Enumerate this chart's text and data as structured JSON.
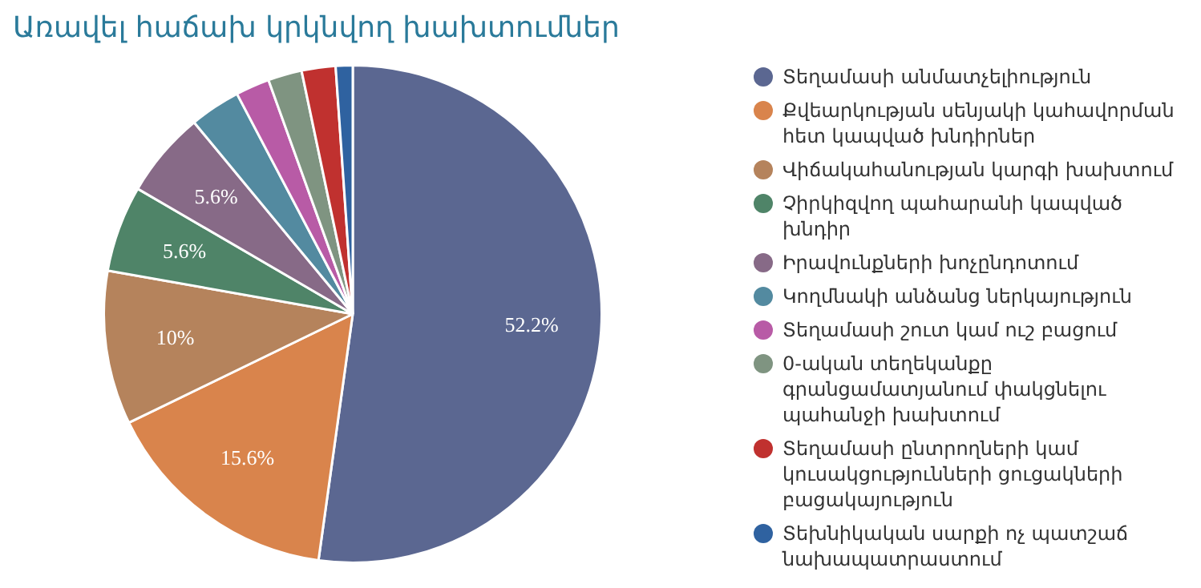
{
  "chart_data": {
    "type": "pie",
    "title": "Առավել հաճախ կրկնվող խախտումներ",
    "categories": [
      "Տեղամասի անմատչելիություն",
      "Քվեարկության սենյակի կահավորման հետ կապված խնդիրներ",
      "Վիճակահանության կարգի խախտում",
      "Չիրկիզվող պահարանի կապված խնդիր",
      "Իրավունքների խոչընդոտում",
      "Կողմնակի անձանց ներկայություն",
      "Տեղամասի շուտ կամ ուշ բացում",
      "0-ական տեղեկանքը գրանցամատյանում փակցնելու պահանջի խախտում",
      "Տեղամասի ընտրողների կամ կուսակցությունների ցուցակների բացակայություն",
      "Տեխնիկական սարքի ոչ պատշաճ նախապատրաստում"
    ],
    "values": [
      52.2,
      15.6,
      10,
      5.6,
      5.6,
      3.3,
      2.2,
      2.2,
      2.2,
      1.1
    ],
    "value_labels": [
      "52.2%",
      "15.6%",
      "10%",
      "5.6%",
      "5.6%",
      null,
      null,
      null,
      null,
      null
    ],
    "colors": [
      "#5b6791",
      "#d9844c",
      "#b5835c",
      "#4f8468",
      "#876a87",
      "#538aa0",
      "#b85ba6",
      "#7f9481",
      "#c0312f",
      "#2f62a0"
    ],
    "legend": "right"
  }
}
